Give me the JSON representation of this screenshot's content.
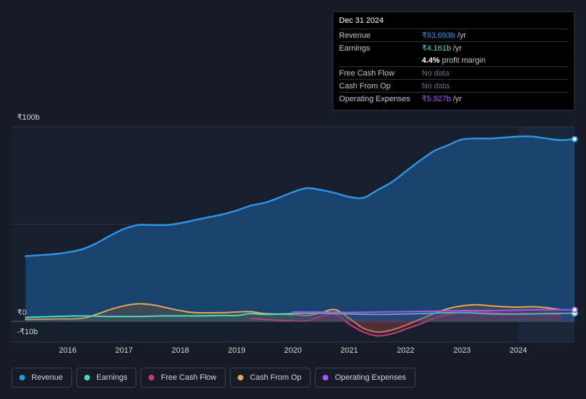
{
  "tooltip": {
    "date": "Dec 31 2024",
    "rows": [
      {
        "label": "Revenue",
        "value": "₹93.693b",
        "suffix": "/yr",
        "color": "#2e93e3"
      },
      {
        "label": "Earnings",
        "value": "₹4.161b",
        "suffix": "/yr",
        "color": "#4fd6c6"
      },
      {
        "label": "",
        "value": "4.4%",
        "suffix": "profit margin",
        "color": "#ffffff"
      },
      {
        "label": "Free Cash Flow",
        "value": "No data",
        "suffix": "",
        "color": "#6b7280"
      },
      {
        "label": "Cash From Op",
        "value": "No data",
        "suffix": "",
        "color": "#6b7280"
      },
      {
        "label": "Operating Expenses",
        "value": "₹5.927b",
        "suffix": "/yr",
        "color": "#a855f7"
      }
    ]
  },
  "legend": [
    {
      "label": "Revenue",
      "color": "#2e93e3"
    },
    {
      "label": "Earnings",
      "color": "#4fd6c6"
    },
    {
      "label": "Free Cash Flow",
      "color": "#c2407a"
    },
    {
      "label": "Cash From Op",
      "color": "#e3a857"
    },
    {
      "label": "Operating Expenses",
      "color": "#a855f7"
    }
  ],
  "chart_data": {
    "type": "area",
    "ylim": [
      -10,
      100
    ],
    "y_ticks": [
      {
        "value": 100,
        "label": "₹100b"
      },
      {
        "value": 0,
        "label": "₹0"
      },
      {
        "value": -10,
        "label": "-₹10b"
      }
    ],
    "x_ticks": [
      {
        "value": 2016,
        "label": "2016"
      },
      {
        "value": 2017,
        "label": "2017"
      },
      {
        "value": 2018,
        "label": "2018"
      },
      {
        "value": 2019,
        "label": "2019"
      },
      {
        "value": 2020,
        "label": "2020"
      },
      {
        "value": 2021,
        "label": "2021"
      },
      {
        "value": 2022,
        "label": "2022"
      },
      {
        "value": 2023,
        "label": "2023"
      },
      {
        "value": 2024,
        "label": "2024"
      }
    ],
    "xlim": [
      2015,
      2025
    ],
    "highlight_start": 2024.0,
    "series": [
      {
        "name": "Revenue",
        "color": "#2e93e3",
        "points": [
          [
            2015.25,
            33.5
          ],
          [
            2015.75,
            34.5
          ],
          [
            2016.0,
            35.5
          ],
          [
            2016.25,
            37
          ],
          [
            2016.5,
            40
          ],
          [
            2016.75,
            44
          ],
          [
            2017.0,
            47.5
          ],
          [
            2017.25,
            49.5
          ],
          [
            2017.5,
            49.5
          ],
          [
            2017.75,
            49.5
          ],
          [
            2018.0,
            50.5
          ],
          [
            2018.25,
            52
          ],
          [
            2018.5,
            53.5
          ],
          [
            2018.75,
            55
          ],
          [
            2019.0,
            57
          ],
          [
            2019.25,
            59.5
          ],
          [
            2019.5,
            61
          ],
          [
            2019.75,
            63.5
          ],
          [
            2020.0,
            66.5
          ],
          [
            2020.25,
            68.5
          ],
          [
            2020.5,
            67.5
          ],
          [
            2020.75,
            66
          ],
          [
            2021.0,
            64
          ],
          [
            2021.25,
            63.5
          ],
          [
            2021.5,
            67.5
          ],
          [
            2021.75,
            71.5
          ],
          [
            2022.0,
            77
          ],
          [
            2022.25,
            82.5
          ],
          [
            2022.5,
            87.5
          ],
          [
            2022.75,
            90.5
          ],
          [
            2023.0,
            93.5
          ],
          [
            2023.25,
            94
          ],
          [
            2023.5,
            94
          ],
          [
            2023.75,
            94.5
          ],
          [
            2024.0,
            95
          ],
          [
            2024.25,
            95
          ],
          [
            2024.5,
            94
          ],
          [
            2024.75,
            93.2
          ],
          [
            2025.0,
            93.7
          ]
        ]
      },
      {
        "name": "Earnings",
        "color": "#4fd6c6",
        "points": [
          [
            2015.25,
            2
          ],
          [
            2015.75,
            2.5
          ],
          [
            2016.25,
            2.8
          ],
          [
            2016.75,
            2.5
          ],
          [
            2017.25,
            2.5
          ],
          [
            2017.75,
            2.8
          ],
          [
            2018.25,
            2.8
          ],
          [
            2018.75,
            3
          ],
          [
            2019.0,
            3
          ],
          [
            2019.25,
            4
          ],
          [
            2019.5,
            3.5
          ],
          [
            2020.0,
            4
          ],
          [
            2020.5,
            4.2
          ],
          [
            2021.0,
            3.8
          ],
          [
            2021.5,
            3.6
          ],
          [
            2022.0,
            3.8
          ],
          [
            2022.5,
            4.2
          ],
          [
            2023.0,
            4.5
          ],
          [
            2023.5,
            3.8
          ],
          [
            2024.0,
            3.7
          ],
          [
            2024.5,
            4.0
          ],
          [
            2025.0,
            4.2
          ]
        ]
      },
      {
        "name": "Free Cash Flow",
        "color": "#c2407a",
        "points": [
          [
            2019.25,
            1.5
          ],
          [
            2019.75,
            0.5
          ],
          [
            2020.0,
            0.3
          ],
          [
            2020.25,
            0.3
          ],
          [
            2020.5,
            2.5
          ],
          [
            2020.75,
            3.5
          ],
          [
            2021.0,
            -1.5
          ],
          [
            2021.25,
            -5.5
          ],
          [
            2021.5,
            -7.5
          ],
          [
            2021.75,
            -6.5
          ],
          [
            2022.0,
            -4
          ],
          [
            2022.25,
            -1.5
          ],
          [
            2022.5,
            1.5
          ],
          [
            2022.75,
            3.5
          ],
          [
            2023.0,
            4.5
          ],
          [
            2023.25,
            5
          ],
          [
            2023.5,
            4.5
          ],
          [
            2023.75,
            4
          ],
          [
            2024.0,
            4
          ],
          [
            2024.25,
            4
          ],
          [
            2024.5,
            3.8
          ],
          [
            2024.75,
            3.5
          ]
        ]
      },
      {
        "name": "Cash From Op",
        "color": "#e3a857",
        "points": [
          [
            2015.25,
            1
          ],
          [
            2015.75,
            1.2
          ],
          [
            2016.25,
            1.5
          ],
          [
            2016.5,
            3.5
          ],
          [
            2016.75,
            6
          ],
          [
            2017.0,
            8
          ],
          [
            2017.25,
            9
          ],
          [
            2017.5,
            8.5
          ],
          [
            2017.75,
            7
          ],
          [
            2018.0,
            5.5
          ],
          [
            2018.25,
            4.5
          ],
          [
            2018.75,
            4.5
          ],
          [
            2019.0,
            4.8
          ],
          [
            2019.25,
            5
          ],
          [
            2019.5,
            4
          ],
          [
            2020.0,
            3.5
          ],
          [
            2020.25,
            3
          ],
          [
            2020.5,
            4.5
          ],
          [
            2020.75,
            6
          ],
          [
            2021.0,
            1.5
          ],
          [
            2021.25,
            -3.5
          ],
          [
            2021.5,
            -5.5
          ],
          [
            2021.75,
            -4.5
          ],
          [
            2022.0,
            -2
          ],
          [
            2022.25,
            1
          ],
          [
            2022.5,
            4
          ],
          [
            2022.75,
            6.5
          ],
          [
            2023.0,
            8
          ],
          [
            2023.25,
            8.5
          ],
          [
            2023.5,
            8
          ],
          [
            2023.75,
            7.5
          ],
          [
            2024.0,
            7.3
          ],
          [
            2024.25,
            7.5
          ],
          [
            2024.5,
            7
          ],
          [
            2024.75,
            6
          ]
        ]
      },
      {
        "name": "Operating Expenses",
        "color": "#a855f7",
        "points": [
          [
            2020.0,
            4.8
          ],
          [
            2020.5,
            4.8
          ],
          [
            2021.0,
            4.6
          ],
          [
            2021.5,
            4.8
          ],
          [
            2022.0,
            5.0
          ],
          [
            2022.5,
            5.2
          ],
          [
            2023.0,
            5.5
          ],
          [
            2023.5,
            5.5
          ],
          [
            2024.0,
            5.8
          ],
          [
            2024.5,
            6.0
          ],
          [
            2025.0,
            5.93
          ]
        ]
      }
    ]
  }
}
